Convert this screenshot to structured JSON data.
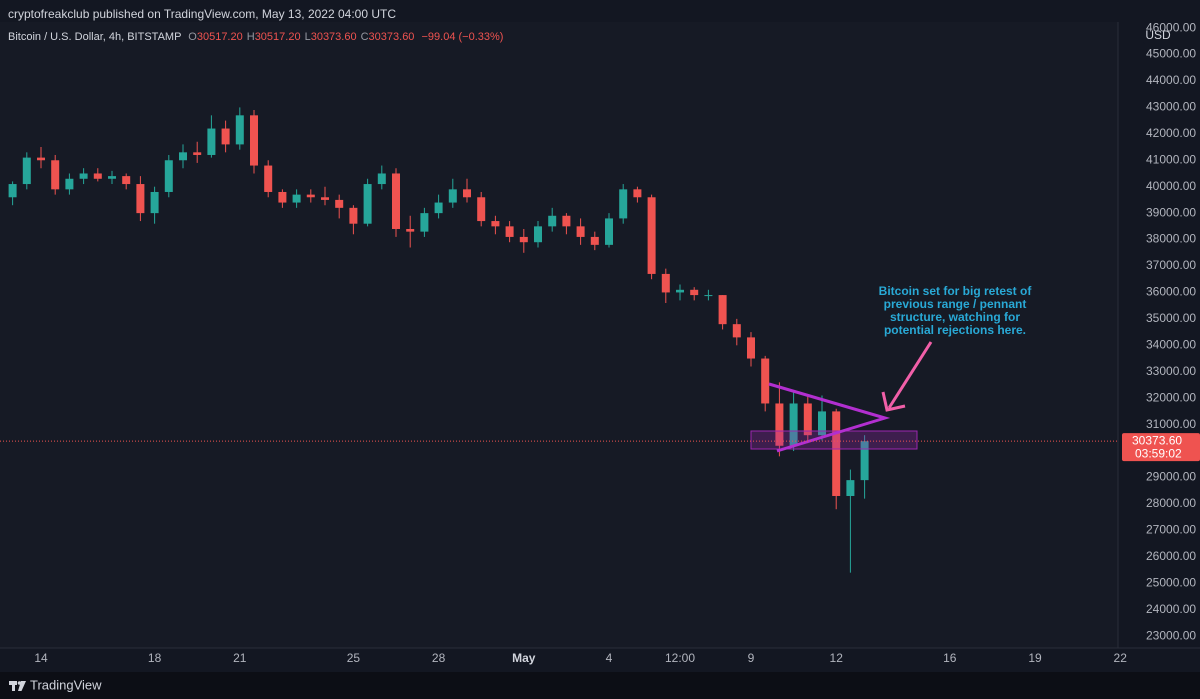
{
  "chart_data": {
    "type": "candlestick",
    "published": "cryptofreakclub published on TradingView.com, May 13, 2022 04:00 UTC",
    "symbol": "Bitcoin / U.S. Dollar, 4h, BITSTAMP",
    "ohlc": [
      {
        "key": "O",
        "value": "30517.20"
      },
      {
        "key": "H",
        "value": "30517.20"
      },
      {
        "key": "L",
        "value": "30373.60"
      },
      {
        "key": "C",
        "value": "30373.60"
      }
    ],
    "change": "−99.04 (−0.33%)",
    "currency": "USD",
    "brand": "TradingView",
    "annotation": [
      "Bitcoin set for big retest of",
      "previous range / pennant",
      "structure, watching for",
      "potential rejections here."
    ],
    "categories": [
      "",
      null,
      "14",
      null,
      null,
      null,
      null,
      null,
      null,
      null,
      "18",
      null,
      null,
      null,
      null,
      null,
      "21",
      null,
      null,
      null,
      null,
      null,
      null,
      null,
      "25",
      null,
      null,
      null,
      null,
      null,
      "28",
      null,
      null,
      null,
      null,
      null,
      "May",
      null,
      null,
      null,
      null,
      null,
      "4",
      null,
      null,
      null,
      null,
      "12:00",
      null,
      null,
      null,
      null,
      "9",
      null,
      null,
      null,
      null,
      null,
      "12",
      null,
      null,
      null,
      null,
      null,
      null,
      null,
      "16",
      null,
      null,
      null,
      null,
      null,
      "19",
      null,
      null,
      null,
      null,
      null,
      "22"
    ],
    "open": [
      39600,
      40100,
      41100,
      41000,
      39900,
      40300,
      40500,
      40300,
      40400,
      40100,
      39000,
      39800,
      41000,
      41300,
      41200,
      42200,
      41600,
      42700,
      40800,
      39800,
      39400,
      39700,
      39600,
      39500,
      39200,
      38600,
      40100,
      40500,
      38400,
      38300,
      39000,
      39400,
      39900,
      39600,
      38700,
      38500,
      38100,
      37900,
      38500,
      38900,
      38500,
      38100,
      37800,
      38800,
      39900,
      39600,
      36700,
      36000,
      36100,
      35900,
      35900,
      34800,
      34300,
      33500,
      31800,
      30200,
      31800,
      30600,
      31500,
      28300,
      28900,
      null,
      null,
      null,
      null,
      null,
      null,
      null,
      null,
      null,
      null,
      null,
      null,
      null,
      null,
      null,
      null,
      null,
      null
    ],
    "high": [
      40200,
      41300,
      41500,
      41200,
      40500,
      40700,
      40700,
      40600,
      40500,
      40400,
      40000,
      41200,
      41600,
      41700,
      42700,
      42500,
      43000,
      42900,
      41000,
      39900,
      39900,
      39900,
      40000,
      39700,
      39300,
      40300,
      40800,
      40700,
      38900,
      39200,
      39700,
      40300,
      40300,
      39800,
      38900,
      38700,
      38400,
      38700,
      39200,
      39000,
      38800,
      38300,
      39000,
      40100,
      40000,
      39700,
      36900,
      36300,
      36200,
      36100,
      35900,
      35000,
      34500,
      33600,
      32600,
      32300,
      32100,
      32100,
      31600,
      29300,
      30600,
      null,
      null,
      null,
      null,
      null,
      null,
      null,
      null,
      null,
      null,
      null,
      null,
      null,
      null,
      null,
      null,
      null,
      null
    ],
    "low": [
      39300,
      39900,
      40700,
      39700,
      39700,
      40100,
      40200,
      40100,
      39900,
      38700,
      38600,
      39600,
      40700,
      40900,
      41100,
      41300,
      41400,
      40500,
      39600,
      39200,
      39200,
      39400,
      39300,
      38800,
      38200,
      38500,
      39900,
      38100,
      37700,
      38100,
      38800,
      39200,
      39400,
      38500,
      38200,
      37900,
      37500,
      37700,
      38300,
      38200,
      37800,
      37600,
      37700,
      38600,
      39400,
      36500,
      35600,
      35700,
      35700,
      35700,
      34600,
      34000,
      33200,
      31500,
      29800,
      30000,
      30300,
      30400,
      27800,
      25400,
      28200,
      null,
      null,
      null,
      null,
      null,
      null,
      null,
      null,
      null,
      null,
      null,
      null,
      null,
      null,
      null,
      null,
      null,
      null
    ],
    "close": [
      40100,
      41100,
      41000,
      39900,
      40300,
      40500,
      40300,
      40400,
      40100,
      39000,
      39800,
      41000,
      41300,
      41200,
      42200,
      41600,
      42700,
      40800,
      39800,
      39400,
      39700,
      39600,
      39500,
      39200,
      38600,
      40100,
      40500,
      38400,
      38300,
      39000,
      39400,
      39900,
      39600,
      38700,
      38500,
      38100,
      37900,
      38500,
      38900,
      38500,
      38100,
      37800,
      38800,
      39900,
      39600,
      36700,
      36000,
      36100,
      35900,
      35900,
      34800,
      34300,
      33500,
      31800,
      30200,
      31800,
      30600,
      31500,
      28300,
      28900,
      30373.6,
      null,
      null,
      null,
      null,
      null,
      null,
      null,
      null,
      null,
      null,
      null,
      null,
      null,
      null,
      null,
      null,
      null,
      null
    ],
    "up_color": "#26a69a",
    "down_color": "#ef5350",
    "last_price": 30373.6,
    "last_price_label": "30373.60",
    "countdown": "03:59:02",
    "ylim": [
      22550,
      46230
    ],
    "yticks": [
      {
        "value": 23000,
        "label": "23000.00"
      },
      {
        "value": 24000,
        "label": "24000.00"
      },
      {
        "value": 25000,
        "label": "25000.00"
      },
      {
        "value": 26000,
        "label": "26000.00"
      },
      {
        "value": 27000,
        "label": "27000.00"
      },
      {
        "value": 28000,
        "label": "28000.00"
      },
      {
        "value": 29000,
        "label": "29000.00"
      },
      {
        "value": 30000,
        "label": "30000.00"
      },
      {
        "value": 31000,
        "label": "31000.00"
      },
      {
        "value": 32000,
        "label": "32000.00"
      },
      {
        "value": 33000,
        "label": "33000.00"
      },
      {
        "value": 34000,
        "label": "34000.00"
      },
      {
        "value": 35000,
        "label": "35000.00"
      },
      {
        "value": 36000,
        "label": "36000.00"
      },
      {
        "value": 37000,
        "label": "37000.00"
      },
      {
        "value": 38000,
        "label": "38000.00"
      },
      {
        "value": 39000,
        "label": "39000.00"
      },
      {
        "value": 40000,
        "label": "40000.00"
      },
      {
        "value": 41000,
        "label": "41000.00"
      },
      {
        "value": 42000,
        "label": "42000.00"
      },
      {
        "value": 43000,
        "label": "43000.00"
      },
      {
        "value": 44000,
        "label": "44000.00"
      },
      {
        "value": 45000,
        "label": "45000.00"
      },
      {
        "value": 46000,
        "label": "46000.00"
      }
    ],
    "grid": false
  }
}
